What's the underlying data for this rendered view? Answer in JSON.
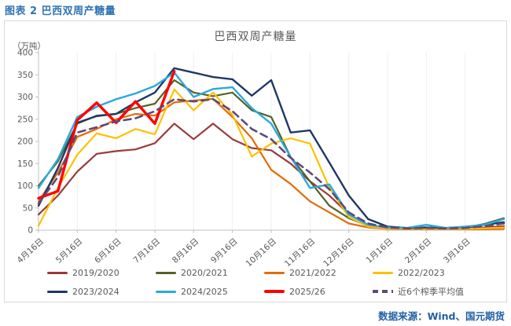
{
  "page": {
    "title": "图表 2 巴西双周产糖量",
    "source": "数据来源：Wind、国元期货"
  },
  "theme": {
    "header_blue": "#2E74B5",
    "source_blue": "#2160A5",
    "title_gray": "#595959",
    "border_gray": "#D9D9D9",
    "axis_gray": "#C0C0C0",
    "grid_gray": "#EFEFEF"
  },
  "chart_data": {
    "type": "line",
    "title": "巴西双周产糖量",
    "unit_label": "（万吨）",
    "x_frequency": "双周（每月16日与月末各一点）",
    "x_tick_labels": [
      "4月16日",
      "5月16日",
      "6月16日",
      "7月16日",
      "8月16日",
      "9月16日",
      "10月16日",
      "11月16日",
      "12月16日",
      "1月16日",
      "2月16日",
      "3月16日"
    ],
    "points_per_full_series": 25,
    "ylim": [
      0,
      400
    ],
    "yticks": [
      0,
      50,
      100,
      150,
      200,
      250,
      300,
      350,
      400
    ],
    "grid": "vertical-light",
    "legend_position": "bottom-two-rows",
    "series": [
      {
        "name": "2019/2020",
        "color": "#9A3B3B",
        "style": "solid",
        "width": 2.2,
        "values": [
          35,
          78,
          132,
          172,
          178,
          182,
          196,
          240,
          205,
          240,
          205,
          185,
          180,
          150,
          110,
          78,
          36,
          12,
          5,
          4,
          4,
          4,
          5,
          6,
          9
        ]
      },
      {
        "name": "2020/2021",
        "color": "#556227",
        "style": "solid",
        "width": 2.2,
        "values": [
          100,
          155,
          240,
          258,
          262,
          275,
          285,
          338,
          310,
          302,
          310,
          270,
          255,
          165,
          110,
          55,
          27,
          10,
          6,
          5,
          4,
          5,
          6,
          14,
          27
        ]
      },
      {
        "name": "2021/2022",
        "color": "#E36C09",
        "style": "solid",
        "width": 2.2,
        "values": [
          65,
          130,
          210,
          228,
          250,
          262,
          258,
          288,
          292,
          296,
          255,
          207,
          136,
          104,
          65,
          40,
          15,
          6,
          3,
          2,
          2,
          2,
          2,
          2,
          3
        ]
      },
      {
        "name": "2022/2023",
        "color": "#FFC000",
        "style": "solid",
        "width": 2.2,
        "values": [
          10,
          95,
          170,
          218,
          207,
          228,
          216,
          317,
          270,
          310,
          260,
          166,
          195,
          207,
          195,
          95,
          30,
          8,
          4,
          3,
          3,
          3,
          3,
          4,
          6
        ]
      },
      {
        "name": "2023/2024",
        "color": "#1F3864",
        "style": "solid",
        "width": 2.4,
        "values": [
          55,
          140,
          242,
          257,
          262,
          288,
          310,
          365,
          355,
          345,
          340,
          303,
          338,
          220,
          225,
          152,
          78,
          25,
          8,
          5,
          6,
          5,
          7,
          12,
          18
        ]
      },
      {
        "name": "2024/2025",
        "color": "#2BA9DF",
        "style": "solid",
        "width": 2.4,
        "values": [
          95,
          160,
          255,
          278,
          295,
          308,
          325,
          355,
          300,
          318,
          322,
          275,
          240,
          165,
          95,
          103,
          35,
          12,
          6,
          5,
          12,
          5,
          8,
          12,
          25
        ]
      },
      {
        "name": "2025/26",
        "color": "#FE0000",
        "style": "solid",
        "width": 3.4,
        "values": [
          72,
          88,
          248,
          287,
          242,
          290,
          240,
          358
        ]
      },
      {
        "name": "近6个榨季平均值",
        "color": "#5F497A",
        "style": "dashed",
        "width": 2.6,
        "values": [
          60,
          120,
          220,
          232,
          245,
          252,
          268,
          295,
          290,
          295,
          268,
          228,
          205,
          163,
          130,
          92,
          40,
          15,
          6,
          4,
          5,
          4,
          5,
          9,
          15
        ]
      }
    ]
  }
}
